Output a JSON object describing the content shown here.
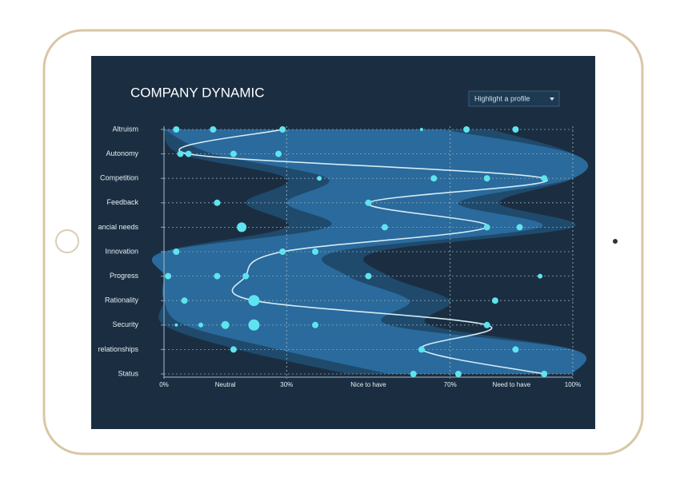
{
  "chart_data": {
    "type": "dot-band",
    "title": "COMPANY DYNAMIC",
    "dropdown": "Highlight a profile",
    "categories": [
      "Altruism",
      "Autonomy",
      "Competition",
      "Feedback",
      "ancial needs",
      "Innovation",
      "Progress",
      "Rationality",
      "Security",
      "relationships",
      "Status"
    ],
    "xlim": [
      0,
      100
    ],
    "xticks": [
      {
        "value": 0,
        "label": "0%"
      },
      {
        "value": 30,
        "label": "30%"
      },
      {
        "value": 70,
        "label": "70%"
      },
      {
        "value": 100,
        "label": "100%"
      }
    ],
    "zones": [
      {
        "value": 15,
        "label": "Neutral"
      },
      {
        "value": 50,
        "label": "Nice to have"
      },
      {
        "value": 85,
        "label": "Need to have"
      }
    ],
    "bands": [
      {
        "color": "#1f4a6c",
        "low": [
          0,
          4,
          30,
          20,
          30,
          0,
          0,
          0,
          0,
          18,
          45
        ],
        "high": [
          80,
          100,
          100,
          82,
          100,
          52,
          55,
          70,
          65,
          100,
          100
        ]
      },
      {
        "color": "#2a6a9c",
        "low": [
          0,
          12,
          40,
          30,
          40,
          0,
          0,
          0,
          5,
          28,
          55
        ],
        "high": [
          68,
          100,
          100,
          72,
          92,
          42,
          45,
          60,
          55,
          100,
          100
        ]
      }
    ],
    "line": {
      "color": "#d4ecf5",
      "values": [
        29,
        6,
        93,
        50,
        79,
        29,
        20,
        22,
        79,
        63,
        93
      ]
    },
    "points": {
      "color": "#5ee4ef",
      "category": [
        0,
        0,
        0,
        0,
        0,
        0,
        1,
        1,
        1,
        1,
        2,
        2,
        2,
        2,
        3,
        3,
        4,
        4,
        4,
        4,
        5,
        5,
        5,
        6,
        6,
        6,
        6,
        6,
        7,
        7,
        7,
        8,
        8,
        8,
        8,
        8,
        8,
        9,
        9,
        9,
        10,
        10,
        10
      ],
      "x": [
        3,
        12,
        29,
        63,
        74,
        86,
        4,
        6,
        17,
        28,
        38,
        66,
        79,
        93,
        13,
        50,
        19,
        54,
        79,
        87,
        3,
        29,
        37,
        1,
        13,
        20,
        50,
        92,
        5,
        22,
        81,
        3,
        9,
        15,
        22,
        37,
        79,
        17,
        63,
        86,
        61,
        72,
        93
      ],
      "size": [
        4,
        4,
        4,
        2,
        4,
        4,
        4,
        4,
        4,
        4,
        3,
        4,
        4,
        4,
        4,
        4,
        6,
        4,
        4,
        4,
        4,
        4,
        4,
        4,
        4,
        4,
        4,
        3,
        4,
        7,
        4,
        2,
        3,
        5,
        7,
        4,
        4,
        4,
        4,
        4,
        4,
        4,
        4
      ]
    }
  }
}
